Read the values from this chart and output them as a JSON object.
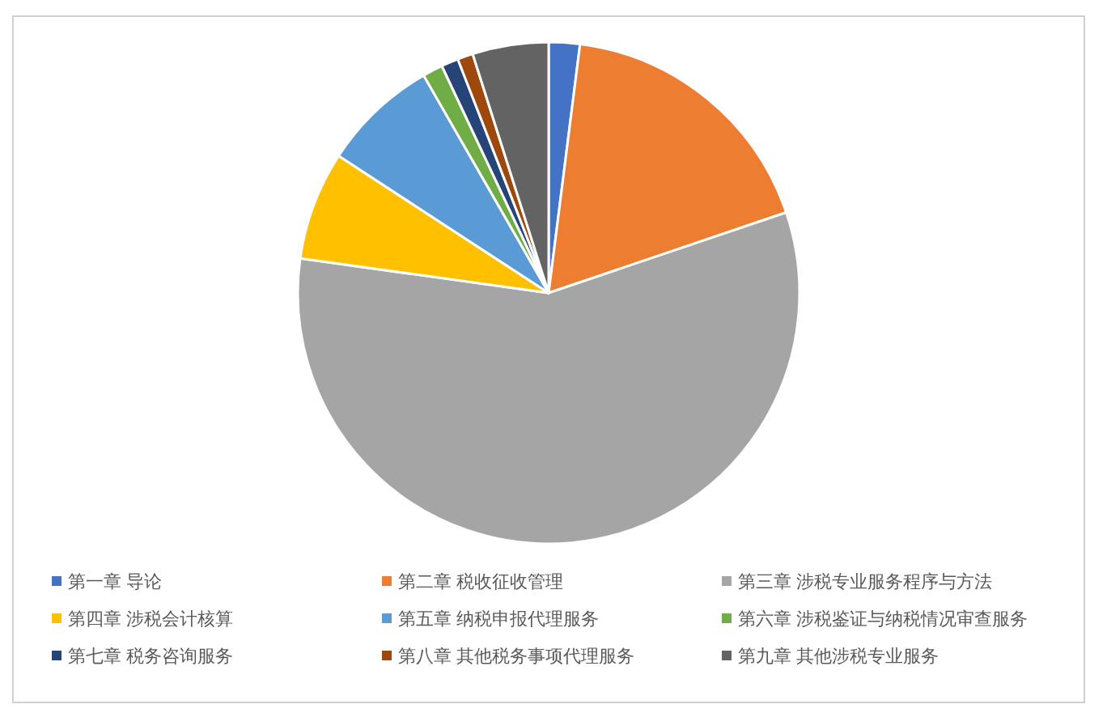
{
  "chart_data": {
    "type": "pie",
    "categories": [
      "第一章 导论",
      "第二章 税收征收管理",
      "第三章 涉税专业服务程序与方法",
      "第四章 涉税会计核算",
      "第五章 纳税申报代理服务",
      "第六章 涉税鉴证与纳税情况审查服务",
      "第七章 税务咨询服务",
      "第八章 其他税务事项代理服务",
      "第九章 其他涉税专业服务"
    ],
    "values": [
      2,
      17.8,
      57.4,
      7,
      7.5,
      1.3,
      1.1,
      1,
      4.9
    ],
    "colors": [
      "#4472c4",
      "#ed7d31",
      "#a5a5a5",
      "#ffc000",
      "#5b9bd5",
      "#70ad47",
      "#264478",
      "#9e480e",
      "#636363"
    ],
    "legend": "bottom"
  }
}
